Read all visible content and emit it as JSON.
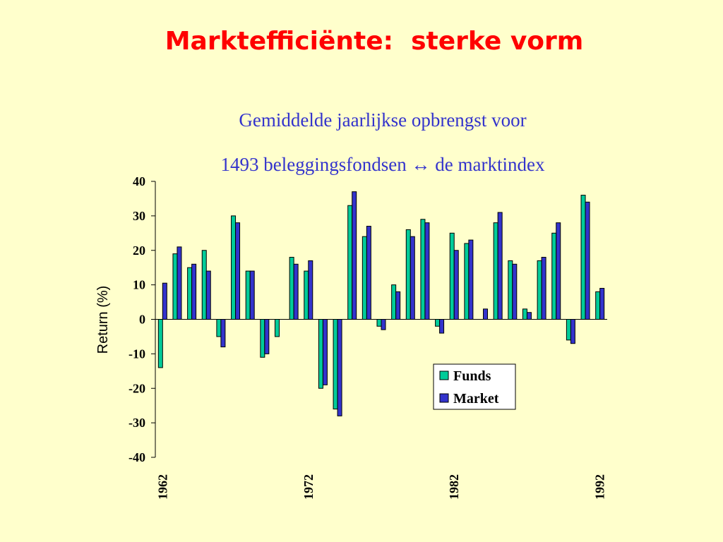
{
  "slide": {
    "title": "Marktefficiënte:  sterke vorm",
    "subtitle_line1": "Gemiddelde jaarlijkse opbrengst voor",
    "subtitle_line2": "1493 beleggingsfondsen ↔ de marktindex"
  },
  "chart_data": {
    "type": "bar",
    "title": "",
    "xlabel": "",
    "ylabel": "Return (%)",
    "ylim": [
      -40,
      40
    ],
    "yticks": [
      40,
      30,
      20,
      10,
      0,
      -10,
      -20,
      -30,
      -40
    ],
    "categories": [
      1962,
      1963,
      1964,
      1965,
      1966,
      1967,
      1968,
      1969,
      1970,
      1971,
      1972,
      1973,
      1974,
      1975,
      1976,
      1977,
      1978,
      1979,
      1980,
      1981,
      1982,
      1983,
      1984,
      1985,
      1986,
      1987,
      1988,
      1989,
      1990,
      1991,
      1992
    ],
    "xtick_labels": [
      "1962",
      "1972",
      "1982",
      "1992"
    ],
    "series": [
      {
        "name": "Funds",
        "color": "#00CC99",
        "values": [
          -14,
          19,
          15,
          20,
          -5,
          30,
          14,
          -11,
          -5,
          18,
          14,
          -20,
          -26,
          33,
          24,
          -2,
          10,
          26,
          29,
          -2,
          25,
          22,
          0,
          28,
          17,
          3,
          17,
          25,
          -6,
          36,
          8
        ]
      },
      {
        "name": "Market",
        "color": "#3333CC",
        "values": [
          10.5,
          21,
          16,
          14,
          -8,
          28,
          14,
          -10,
          0,
          16,
          17,
          -19,
          -28,
          37,
          27,
          -3,
          8,
          24,
          28,
          -4,
          20,
          23,
          3,
          31,
          16,
          2,
          18,
          28,
          -7,
          34,
          9
        ]
      }
    ],
    "grid": false,
    "legend_position": "bottom-right"
  }
}
